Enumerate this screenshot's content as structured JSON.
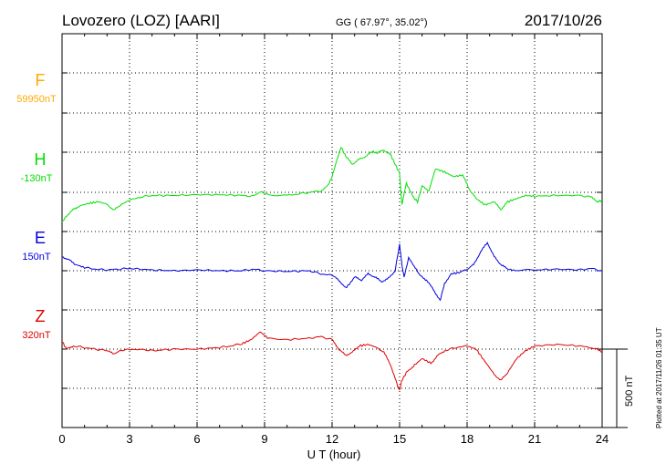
{
  "header": {
    "station": "Lovozero (LOZ)  [AARI]",
    "coords": "GG ( 67.97°,  35.02°)",
    "date": "2017/10/26"
  },
  "plot_note": "Plotted at 2017/11/26 01:35 UT",
  "scale_bar_label": "500 nT",
  "chart_data": {
    "type": "line",
    "xlabel": "U T (hour)",
    "xlim": [
      0,
      24
    ],
    "xticks": [
      0,
      3,
      6,
      9,
      12,
      15,
      18,
      21,
      24
    ],
    "xtick_labels": [
      "0",
      "3",
      "6",
      "9",
      "12",
      "15",
      "18",
      "21",
      "24"
    ],
    "grid": true,
    "scale_bar_nT": 500,
    "channels": [
      {
        "name": "F",
        "baseline_label": "59950nT",
        "color": "#ffaa00",
        "x": [],
        "y": []
      },
      {
        "name": "H",
        "baseline_label": "-130nT",
        "color": "#00e000",
        "x": [
          0,
          0.2,
          0.5,
          0.8,
          1.2,
          1.6,
          2.0,
          2.3,
          2.6,
          3.0,
          3.5,
          4.0,
          5.0,
          6.0,
          7.0,
          8.0,
          8.5,
          8.8,
          9.2,
          10.0,
          10.5,
          11.0,
          11.5,
          11.8,
          12.0,
          12.2,
          12.4,
          12.6,
          12.9,
          13.2,
          13.5,
          13.8,
          14.0,
          14.3,
          14.6,
          14.8,
          15.0,
          15.1,
          15.3,
          15.6,
          15.8,
          16.0,
          16.3,
          16.6,
          17.0,
          17.4,
          17.8,
          18.1,
          18.4,
          18.8,
          19.2,
          19.5,
          19.8,
          20.2,
          20.6,
          21.0,
          22.0,
          23.0,
          23.5,
          23.8,
          24.0
        ],
        "y": [
          -190,
          -150,
          -110,
          -85,
          -70,
          -60,
          -75,
          -115,
          -80,
          -50,
          -30,
          -20,
          -20,
          -15,
          -15,
          -20,
          -25,
          5,
          -15,
          -20,
          -10,
          0,
          10,
          40,
          100,
          200,
          290,
          230,
          180,
          210,
          230,
          260,
          250,
          270,
          240,
          180,
          120,
          -80,
          60,
          -30,
          -60,
          40,
          10,
          150,
          130,
          100,
          110,
          20,
          -40,
          -80,
          -60,
          -110,
          -60,
          -40,
          -20,
          -25,
          -20,
          -20,
          -30,
          -60,
          -50
        ]
      },
      {
        "name": "E",
        "baseline_label": "150nT",
        "color": "#0000e0",
        "x": [
          0,
          0.3,
          0.6,
          1.0,
          1.5,
          2.0,
          2.5,
          3.0,
          4.0,
          5.0,
          6.0,
          7.0,
          8.0,
          8.5,
          9.0,
          10.0,
          11.0,
          11.5,
          12.0,
          12.3,
          12.6,
          12.8,
          13.0,
          13.3,
          13.6,
          13.9,
          14.2,
          14.5,
          14.8,
          15.0,
          15.1,
          15.2,
          15.4,
          15.7,
          15.9,
          16.2,
          16.5,
          16.8,
          17.0,
          17.3,
          17.7,
          18.0,
          18.3,
          18.6,
          18.9,
          19.2,
          19.5,
          19.8,
          20.2,
          21.0,
          22.0,
          23.0,
          23.5,
          24.0
        ],
        "y": [
          90,
          70,
          40,
          20,
          10,
          5,
          10,
          15,
          5,
          0,
          5,
          0,
          0,
          10,
          0,
          -5,
          0,
          -20,
          -30,
          -60,
          -110,
          -80,
          -40,
          -60,
          -20,
          -40,
          -70,
          -50,
          0,
          170,
          40,
          -40,
          80,
          20,
          -30,
          -60,
          -120,
          -190,
          -80,
          -20,
          -10,
          10,
          40,
          120,
          180,
          90,
          40,
          10,
          0,
          5,
          10,
          5,
          15,
          0
        ]
      },
      {
        "name": "Z",
        "baseline_label": "320nT",
        "color": "#e00000",
        "x": [
          0,
          0.2,
          0.5,
          1.0,
          1.5,
          2.0,
          2.3,
          2.8,
          3.5,
          4.0,
          4.5,
          5.0,
          6.0,
          7.0,
          7.5,
          8.0,
          8.4,
          8.8,
          9.2,
          10.0,
          11.0,
          11.5,
          12.0,
          12.3,
          12.6,
          12.9,
          13.2,
          13.6,
          14.0,
          14.3,
          14.6,
          14.9,
          15.0,
          15.1,
          15.3,
          15.6,
          16.0,
          16.4,
          16.7,
          17.0,
          17.5,
          18.0,
          18.4,
          18.8,
          19.2,
          19.5,
          19.8,
          20.2,
          20.6,
          21.0,
          22.0,
          23.0,
          23.5,
          23.8,
          24.0
        ],
        "y": [
          50,
          0,
          20,
          10,
          0,
          -10,
          -30,
          0,
          0,
          -10,
          -5,
          0,
          0,
          10,
          20,
          35,
          60,
          110,
          65,
          60,
          70,
          80,
          60,
          0,
          -40,
          -20,
          20,
          30,
          10,
          -20,
          -100,
          -230,
          -260,
          -200,
          -150,
          -110,
          -60,
          -90,
          -40,
          -10,
          10,
          20,
          0,
          -80,
          -160,
          -200,
          -150,
          -60,
          -10,
          20,
          30,
          20,
          10,
          0,
          -20
        ]
      }
    ]
  }
}
